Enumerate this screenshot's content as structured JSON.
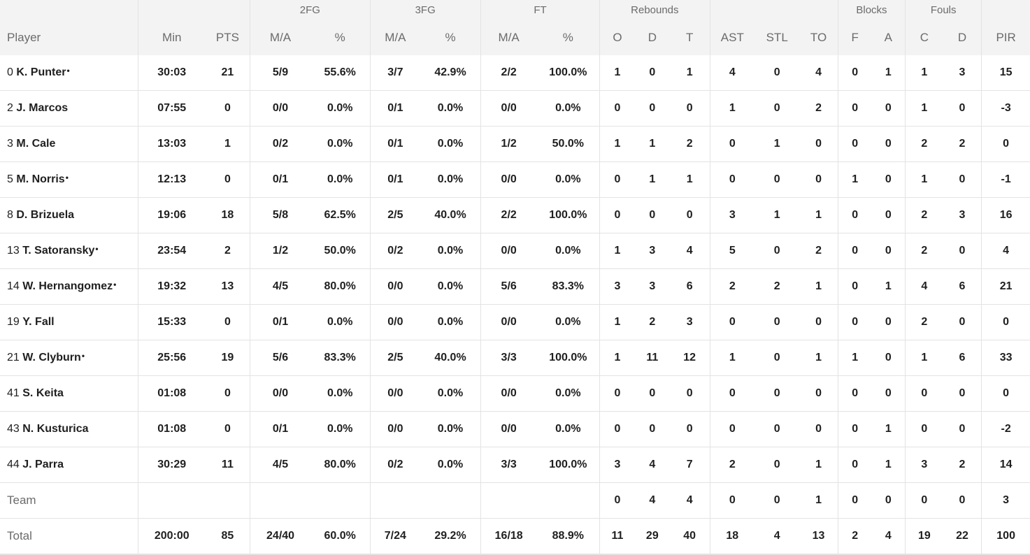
{
  "groups": {
    "fg2": "2FG",
    "fg3": "3FG",
    "ft": "FT",
    "rebounds": "Rebounds",
    "blocks": "Blocks",
    "fouls": "Fouls"
  },
  "columns": [
    "Player",
    "Min",
    "PTS",
    "M/A",
    "%",
    "M/A",
    "%",
    "M/A",
    "%",
    "O",
    "D",
    "T",
    "AST",
    "STL",
    "TO",
    "F",
    "A",
    "C",
    "D",
    "PIR"
  ],
  "players": [
    {
      "num": "0",
      "name": "K. Punter",
      "star": "*",
      "stats": [
        "30:03",
        "21",
        "5/9",
        "55.6%",
        "3/7",
        "42.9%",
        "2/2",
        "100.0%",
        "1",
        "0",
        "1",
        "4",
        "0",
        "4",
        "0",
        "1",
        "1",
        "3",
        "15"
      ]
    },
    {
      "num": "2",
      "name": "J. Marcos",
      "star": "",
      "stats": [
        "07:55",
        "0",
        "0/0",
        "0.0%",
        "0/1",
        "0.0%",
        "0/0",
        "0.0%",
        "0",
        "0",
        "0",
        "1",
        "0",
        "2",
        "0",
        "0",
        "1",
        "0",
        "-3"
      ]
    },
    {
      "num": "3",
      "name": "M. Cale",
      "star": "",
      "stats": [
        "13:03",
        "1",
        "0/2",
        "0.0%",
        "0/1",
        "0.0%",
        "1/2",
        "50.0%",
        "1",
        "1",
        "2",
        "0",
        "1",
        "0",
        "0",
        "0",
        "2",
        "2",
        "0"
      ]
    },
    {
      "num": "5",
      "name": "M. Norris",
      "star": "*",
      "stats": [
        "12:13",
        "0",
        "0/1",
        "0.0%",
        "0/1",
        "0.0%",
        "0/0",
        "0.0%",
        "0",
        "1",
        "1",
        "0",
        "0",
        "0",
        "1",
        "0",
        "1",
        "0",
        "-1"
      ]
    },
    {
      "num": "8",
      "name": "D. Brizuela",
      "star": "",
      "stats": [
        "19:06",
        "18",
        "5/8",
        "62.5%",
        "2/5",
        "40.0%",
        "2/2",
        "100.0%",
        "0",
        "0",
        "0",
        "3",
        "1",
        "1",
        "0",
        "0",
        "2",
        "3",
        "16"
      ]
    },
    {
      "num": "13",
      "name": "T. Satoransky",
      "star": "*",
      "stats": [
        "23:54",
        "2",
        "1/2",
        "50.0%",
        "0/2",
        "0.0%",
        "0/0",
        "0.0%",
        "1",
        "3",
        "4",
        "5",
        "0",
        "2",
        "0",
        "0",
        "2",
        "0",
        "4"
      ]
    },
    {
      "num": "14",
      "name": "W. Hernangomez",
      "star": "*",
      "stats": [
        "19:32",
        "13",
        "4/5",
        "80.0%",
        "0/0",
        "0.0%",
        "5/6",
        "83.3%",
        "3",
        "3",
        "6",
        "2",
        "2",
        "1",
        "0",
        "1",
        "4",
        "6",
        "21"
      ]
    },
    {
      "num": "19",
      "name": "Y. Fall",
      "star": "",
      "stats": [
        "15:33",
        "0",
        "0/1",
        "0.0%",
        "0/0",
        "0.0%",
        "0/0",
        "0.0%",
        "1",
        "2",
        "3",
        "0",
        "0",
        "0",
        "0",
        "0",
        "2",
        "0",
        "0"
      ]
    },
    {
      "num": "21",
      "name": "W. Clyburn",
      "star": "*",
      "stats": [
        "25:56",
        "19",
        "5/6",
        "83.3%",
        "2/5",
        "40.0%",
        "3/3",
        "100.0%",
        "1",
        "11",
        "12",
        "1",
        "0",
        "1",
        "1",
        "0",
        "1",
        "6",
        "33"
      ]
    },
    {
      "num": "41",
      "name": "S. Keita",
      "star": "",
      "stats": [
        "01:08",
        "0",
        "0/0",
        "0.0%",
        "0/0",
        "0.0%",
        "0/0",
        "0.0%",
        "0",
        "0",
        "0",
        "0",
        "0",
        "0",
        "0",
        "0",
        "0",
        "0",
        "0"
      ]
    },
    {
      "num": "43",
      "name": "N. Kusturica",
      "star": "",
      "stats": [
        "01:08",
        "0",
        "0/1",
        "0.0%",
        "0/0",
        "0.0%",
        "0/0",
        "0.0%",
        "0",
        "0",
        "0",
        "0",
        "0",
        "0",
        "0",
        "1",
        "0",
        "0",
        "-2"
      ]
    },
    {
      "num": "44",
      "name": "J. Parra",
      "star": "",
      "stats": [
        "30:29",
        "11",
        "4/5",
        "80.0%",
        "0/2",
        "0.0%",
        "3/3",
        "100.0%",
        "3",
        "4",
        "7",
        "2",
        "0",
        "1",
        "0",
        "1",
        "3",
        "2",
        "14"
      ]
    }
  ],
  "team": {
    "label": "Team",
    "stats": [
      "",
      "",
      "",
      "",
      "",
      "",
      "",
      "",
      "0",
      "4",
      "4",
      "0",
      "0",
      "1",
      "0",
      "0",
      "0",
      "0",
      "3"
    ]
  },
  "total": {
    "label": "Total",
    "stats": [
      "200:00",
      "85",
      "24/40",
      "60.0%",
      "7/24",
      "29.2%",
      "16/18",
      "88.9%",
      "11",
      "29",
      "40",
      "18",
      "4",
      "13",
      "2",
      "4",
      "19",
      "22",
      "100"
    ]
  }
}
